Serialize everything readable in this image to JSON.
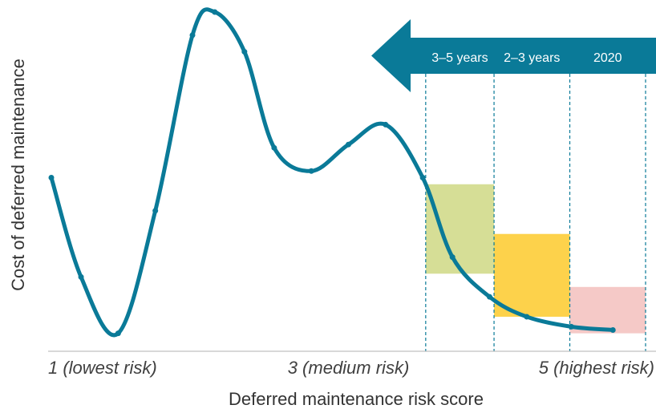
{
  "chart_data": {
    "type": "line",
    "xlabel": "Deferred maintenance risk score",
    "ylabel": "Cost of deferred maintenance",
    "x_tick_labels": [
      {
        "x": 1,
        "label": "1 (lowest risk)"
      },
      {
        "x": 3,
        "label": "3 (medium risk)"
      },
      {
        "x": 5,
        "label": "5 (highest risk)"
      }
    ],
    "xlim": [
      1,
      5
    ],
    "ylim": [
      0,
      100
    ],
    "grid": false,
    "series": [
      {
        "color": "#0a7a98",
        "points": [
          {
            "x": 1.0,
            "y": 50
          },
          {
            "x": 1.2,
            "y": 20
          },
          {
            "x": 1.45,
            "y": 3
          },
          {
            "x": 1.7,
            "y": 40
          },
          {
            "x": 1.95,
            "y": 93
          },
          {
            "x": 2.1,
            "y": 100
          },
          {
            "x": 2.3,
            "y": 88
          },
          {
            "x": 2.5,
            "y": 59
          },
          {
            "x": 2.75,
            "y": 52
          },
          {
            "x": 3.0,
            "y": 60
          },
          {
            "x": 3.25,
            "y": 66
          },
          {
            "x": 3.5,
            "y": 50
          },
          {
            "x": 3.7,
            "y": 26
          },
          {
            "x": 3.95,
            "y": 14
          },
          {
            "x": 4.2,
            "y": 8
          },
          {
            "x": 4.5,
            "y": 5
          },
          {
            "x": 4.78,
            "y": 4
          }
        ]
      }
    ],
    "bands": [
      {
        "label": "3–5 years",
        "x0": 3.52,
        "x1": 3.98,
        "y_low": 21,
        "y_high": 48,
        "color": "#d6de96"
      },
      {
        "label": "2–3 years",
        "x0": 3.98,
        "x1": 4.49,
        "y_low": 8,
        "y_high": 33,
        "color": "#fdd24b"
      },
      {
        "label": "2020",
        "x0": 4.49,
        "x1": 5.0,
        "y_low": 3,
        "y_high": 17,
        "color": "#f5c9c7"
      }
    ],
    "arrow": {
      "direction": "left",
      "color": "#0a7a98"
    }
  }
}
